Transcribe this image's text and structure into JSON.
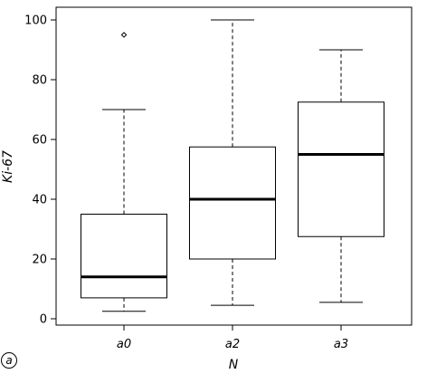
{
  "panel_label": "a",
  "chart_data": {
    "type": "boxplot",
    "xlabel": "N",
    "ylabel": "Ki-67",
    "ylim": [
      0,
      100
    ],
    "yticks": [
      0,
      20,
      40,
      60,
      80,
      100
    ],
    "categories": [
      "a0",
      "a2",
      "a3"
    ],
    "boxes": [
      {
        "category": "a0",
        "whisker_low": 2.5,
        "q1": 7,
        "median": 14,
        "q3": 35,
        "whisker_high": 70,
        "outliers": [
          95
        ]
      },
      {
        "category": "a2",
        "whisker_low": 4.5,
        "q1": 20,
        "median": 40,
        "q3": 57.5,
        "whisker_high": 100,
        "outliers": []
      },
      {
        "category": "a3",
        "whisker_low": 5.5,
        "q1": 27.5,
        "median": 55,
        "q3": 72.5,
        "whisker_high": 90,
        "outliers": []
      }
    ],
    "grid": false,
    "legend": "none",
    "colors": {
      "box_fill": "#ffffff",
      "stroke": "#000000"
    }
  }
}
